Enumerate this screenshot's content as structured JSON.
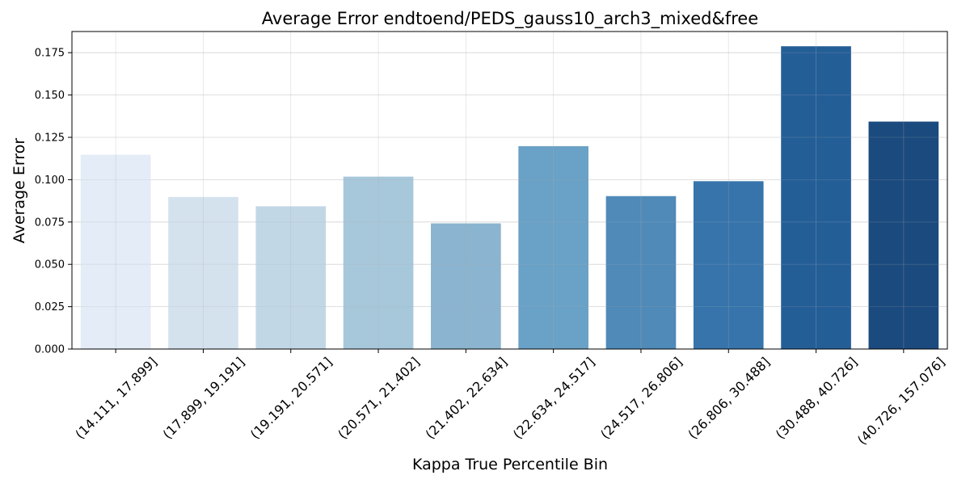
{
  "chart_data": {
    "type": "bar",
    "title": "Average Error endtoend/PEDS_gauss10_arch3_mixed&free",
    "xlabel": "Kappa True Percentile Bin",
    "ylabel": "Average Error",
    "categories": [
      "(14.111, 17.899]",
      "(17.899, 19.191]",
      "(19.191, 20.571]",
      "(20.571, 21.402]",
      "(21.402, 22.634]",
      "(22.634, 24.517]",
      "(24.517, 26.806]",
      "(26.806, 30.488]",
      "(30.488, 40.726]",
      "(40.726, 157.076]"
    ],
    "values": [
      0.1147,
      0.0898,
      0.0843,
      0.1018,
      0.0742,
      0.1198,
      0.0903,
      0.0991,
      0.1788,
      0.1343
    ],
    "bar_colors": [
      "#e3ecf7",
      "#d4e2ee",
      "#c2d7e6",
      "#a7c7da",
      "#8ab4cf",
      "#6aa1c6",
      "#4f8ab8",
      "#3674ab",
      "#245e97",
      "#1b4a7e"
    ],
    "ylim": [
      0,
      0.1875
    ],
    "yticks": [
      0.0,
      0.025,
      0.05,
      0.075,
      0.1,
      0.125,
      0.15,
      0.175
    ],
    "ytick_labels": [
      "0.000",
      "0.025",
      "0.050",
      "0.075",
      "0.100",
      "0.125",
      "0.150",
      "0.175"
    ],
    "grid": true,
    "legend": "none"
  }
}
